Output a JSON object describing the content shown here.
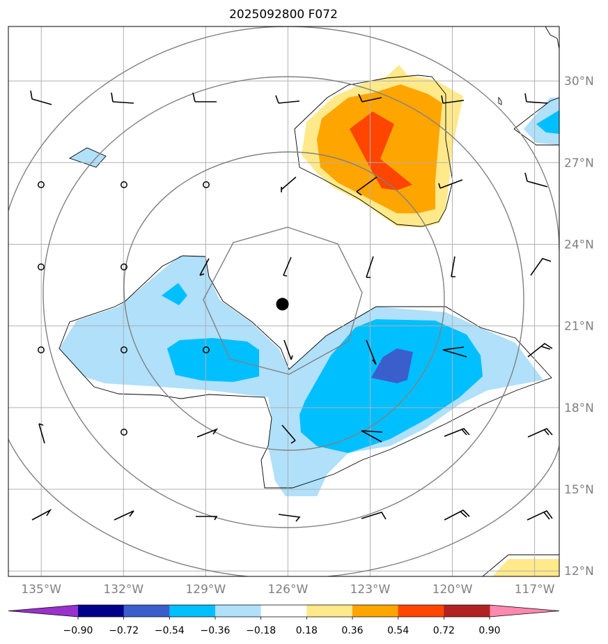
{
  "title": "2025092800 F072",
  "map": {
    "lon_range": [
      -136.2,
      -116.1
    ],
    "lat_range": [
      11.8,
      32.0
    ],
    "lon_ticks": [
      {
        "value": -135,
        "label": "135°W"
      },
      {
        "value": -132,
        "label": "132°W"
      },
      {
        "value": -129,
        "label": "129°W"
      },
      {
        "value": -126,
        "label": "126°W"
      },
      {
        "value": -123,
        "label": "123°W"
      },
      {
        "value": -120,
        "label": "120°W"
      },
      {
        "value": -117,
        "label": "117°W"
      }
    ],
    "lat_ticks": [
      {
        "value": 30,
        "label": "30°N"
      },
      {
        "value": 27,
        "label": "27°N"
      },
      {
        "value": 24,
        "label": "24°N"
      },
      {
        "value": 21,
        "label": "21°N"
      },
      {
        "value": 18,
        "label": "18°N"
      },
      {
        "value": 15,
        "label": "15°N"
      },
      {
        "value": 12,
        "label": "12°N"
      }
    ],
    "gridlines": true,
    "storm_center": {
      "lon": -126.2,
      "lat": 21.8
    },
    "range_rings": true
  },
  "colorbar": {
    "ticks": [
      "−0.90",
      "−0.72",
      "−0.54",
      "−0.36",
      "−0.18",
      "0.18",
      "0.36",
      "0.54",
      "0.72",
      "0.90"
    ],
    "under_color": "#9932cc",
    "over_color": "#ff88b0",
    "colors": [
      "#00008b",
      "#3a5fcd",
      "#00bfff",
      "#b0e0fa",
      "#ffffff",
      "#ffe98a",
      "#ffa500",
      "#ff4500",
      "#b22222"
    ]
  },
  "colors": {
    "light_blue": "#b0e0fa",
    "blue": "#00bfff",
    "royal_blue": "#3a5fcd",
    "light_yellow": "#ffe98a",
    "orange": "#ffa500",
    "red_orange": "#ff4500",
    "ring": "#808080",
    "grid": "#b0b0b0"
  }
}
